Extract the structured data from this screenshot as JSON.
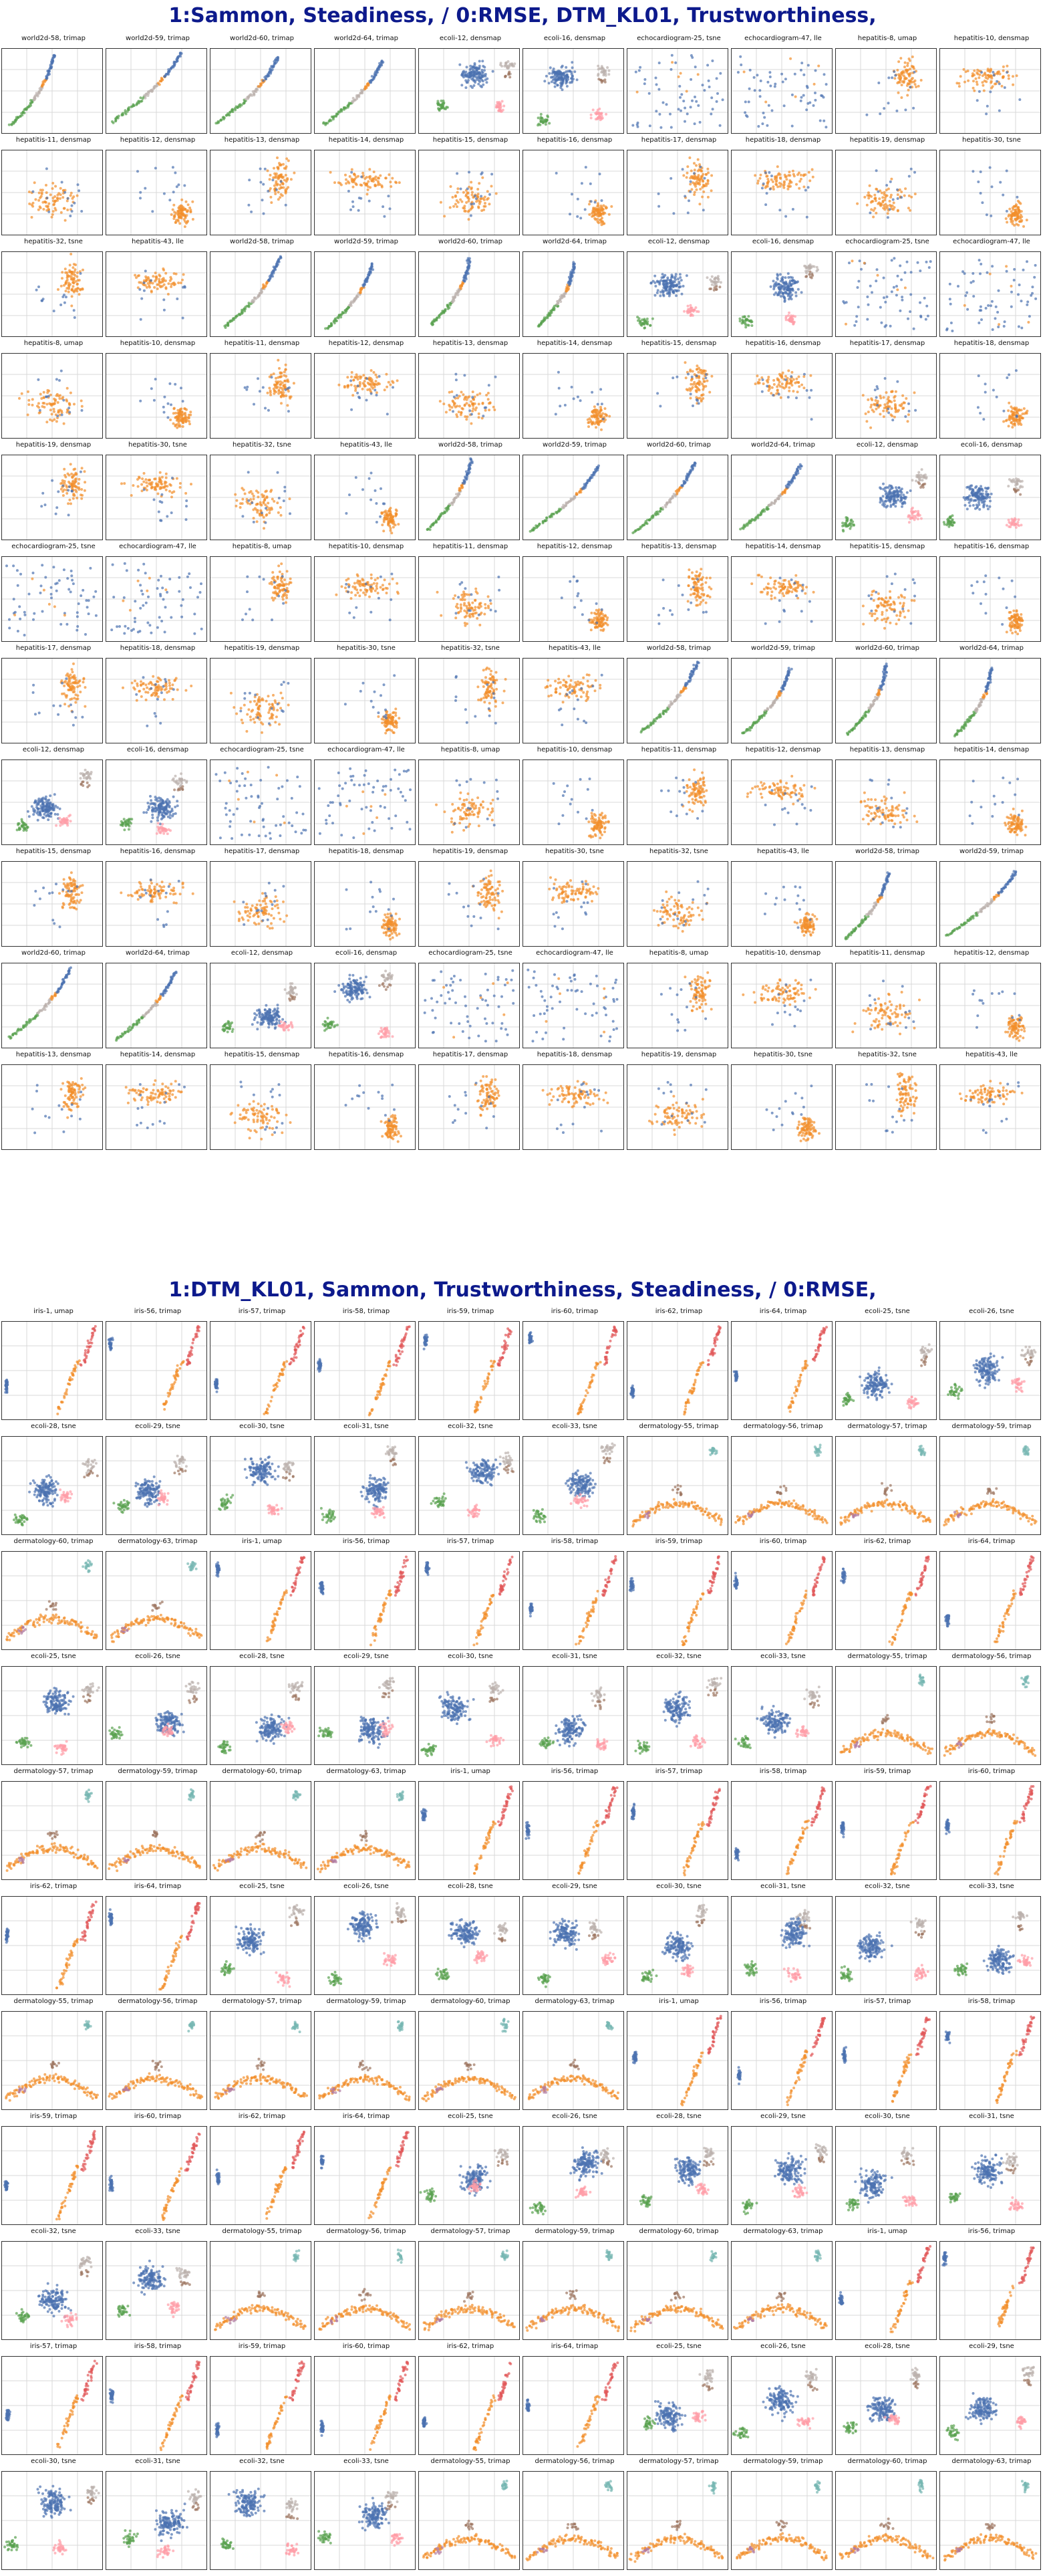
{
  "sections": [
    {
      "title": "1:Sammon, Steadiness,  / 0:RMSE, DTM_KL01, Trustworthiness,",
      "panels": [
        "world2d-58, trimap",
        "world2d-59, trimap",
        "world2d-60, trimap",
        "world2d-64, trimap",
        "ecoli-12, densmap",
        "ecoli-16, densmap",
        "echocardiogram-25, tsne",
        "echocardiogram-47, lle",
        "hepatitis-8, umap",
        "hepatitis-10, densmap",
        "hepatitis-11, densmap",
        "hepatitis-12, densmap",
        "hepatitis-13, densmap",
        "hepatitis-14, densmap",
        "hepatitis-15, densmap",
        "hepatitis-16, densmap",
        "hepatitis-17, densmap",
        "hepatitis-18, densmap",
        "hepatitis-19, densmap",
        "hepatitis-30, tsne",
        "hepatitis-32, tsne",
        "hepatitis-43, lle",
        "world2d-58, trimap",
        "world2d-59, trimap",
        "world2d-60, trimap",
        "world2d-64, trimap",
        "ecoli-12, densmap",
        "ecoli-16, densmap",
        "echocardiogram-25, tsne",
        "echocardiogram-47, lle",
        "hepatitis-8, umap",
        "hepatitis-10, densmap",
        "hepatitis-11, densmap",
        "hepatitis-12, densmap",
        "hepatitis-13, densmap",
        "hepatitis-14, densmap",
        "hepatitis-15, densmap",
        "hepatitis-16, densmap",
        "hepatitis-17, densmap",
        "hepatitis-18, densmap",
        "hepatitis-19, densmap",
        "hepatitis-30, tsne",
        "hepatitis-32, tsne",
        "hepatitis-43, lle",
        "world2d-58, trimap",
        "world2d-59, trimap",
        "world2d-60, trimap",
        "world2d-64, trimap",
        "ecoli-12, densmap",
        "ecoli-16, densmap",
        "echocardiogram-25, tsne",
        "echocardiogram-47, lle",
        "hepatitis-8, umap",
        "hepatitis-10, densmap",
        "hepatitis-11, densmap",
        "hepatitis-12, densmap",
        "hepatitis-13, densmap",
        "hepatitis-14, densmap",
        "hepatitis-15, densmap",
        "hepatitis-16, densmap",
        "hepatitis-17, densmap",
        "hepatitis-18, densmap",
        "hepatitis-19, densmap",
        "hepatitis-30, tsne",
        "hepatitis-32, tsne",
        "hepatitis-43, lle",
        "world2d-58, trimap",
        "world2d-59, trimap",
        "world2d-60, trimap",
        "world2d-64, trimap",
        "ecoli-12, densmap",
        "ecoli-16, densmap",
        "echocardiogram-25, tsne",
        "echocardiogram-47, lle",
        "hepatitis-8, umap",
        "hepatitis-10, densmap",
        "hepatitis-11, densmap",
        "hepatitis-12, densmap",
        "hepatitis-13, densmap",
        "hepatitis-14, densmap",
        "hepatitis-15, densmap",
        "hepatitis-16, densmap",
        "hepatitis-17, densmap",
        "hepatitis-18, densmap",
        "hepatitis-19, densmap",
        "hepatitis-30, tsne",
        "hepatitis-32, tsne",
        "hepatitis-43, lle",
        "world2d-58, trimap",
        "world2d-59, trimap",
        "world2d-60, trimap",
        "world2d-64, trimap",
        "ecoli-12, densmap",
        "ecoli-16, densmap",
        "echocardiogram-25, tsne",
        "echocardiogram-47, lle",
        "hepatitis-8, umap",
        "hepatitis-10, densmap",
        "hepatitis-11, densmap",
        "hepatitis-12, densmap",
        "hepatitis-13, densmap",
        "hepatitis-14, densmap",
        "hepatitis-15, densmap",
        "hepatitis-16, densmap",
        "hepatitis-17, densmap",
        "hepatitis-18, densmap",
        "hepatitis-19, densmap",
        "hepatitis-30, tsne",
        "hepatitis-32, tsne",
        "hepatitis-43, lle"
      ]
    },
    {
      "title": "1:DTM_KL01, Sammon, Trustworthiness, Steadiness,  / 0:RMSE,",
      "panels": [
        "iris-1, umap",
        "iris-56, trimap",
        "iris-57, trimap",
        "iris-58, trimap",
        "iris-59, trimap",
        "iris-60, trimap",
        "iris-62, trimap",
        "iris-64, trimap",
        "ecoli-25, tsne",
        "ecoli-26, tsne",
        "ecoli-28, tsne",
        "ecoli-29, tsne",
        "ecoli-30, tsne",
        "ecoli-31, tsne",
        "ecoli-32, tsne",
        "ecoli-33, tsne",
        "dermatology-55, trimap",
        "dermatology-56, trimap",
        "dermatology-57, trimap",
        "dermatology-59, trimap",
        "dermatology-60, trimap",
        "dermatology-63, trimap",
        "iris-1, umap",
        "iris-56, trimap",
        "iris-57, trimap",
        "iris-58, trimap",
        "iris-59, trimap",
        "iris-60, trimap",
        "iris-62, trimap",
        "iris-64, trimap",
        "ecoli-25, tsne",
        "ecoli-26, tsne",
        "ecoli-28, tsne",
        "ecoli-29, tsne",
        "ecoli-30, tsne",
        "ecoli-31, tsne",
        "ecoli-32, tsne",
        "ecoli-33, tsne",
        "dermatology-55, trimap",
        "dermatology-56, trimap",
        "dermatology-57, trimap",
        "dermatology-59, trimap",
        "dermatology-60, trimap",
        "dermatology-63, trimap",
        "iris-1, umap",
        "iris-56, trimap",
        "iris-57, trimap",
        "iris-58, trimap",
        "iris-59, trimap",
        "iris-60, trimap",
        "iris-62, trimap",
        "iris-64, trimap",
        "ecoli-25, tsne",
        "ecoli-26, tsne",
        "ecoli-28, tsne",
        "ecoli-29, tsne",
        "ecoli-30, tsne",
        "ecoli-31, tsne",
        "ecoli-32, tsne",
        "ecoli-33, tsne",
        "dermatology-55, trimap",
        "dermatology-56, trimap",
        "dermatology-57, trimap",
        "dermatology-59, trimap",
        "dermatology-60, trimap",
        "dermatology-63, trimap",
        "iris-1, umap",
        "iris-56, trimap",
        "iris-57, trimap",
        "iris-58, trimap",
        "iris-59, trimap",
        "iris-60, trimap",
        "iris-62, trimap",
        "iris-64, trimap",
        "ecoli-25, tsne",
        "ecoli-26, tsne",
        "ecoli-28, tsne",
        "ecoli-29, tsne",
        "ecoli-30, tsne",
        "ecoli-31, tsne",
        "ecoli-32, tsne",
        "ecoli-33, tsne",
        "dermatology-55, trimap",
        "dermatology-56, trimap",
        "dermatology-57, trimap",
        "dermatology-59, trimap",
        "dermatology-60, trimap",
        "dermatology-63, trimap",
        "iris-1, umap",
        "iris-56, trimap",
        "iris-57, trimap",
        "iris-58, trimap",
        "iris-59, trimap",
        "iris-60, trimap",
        "iris-62, trimap",
        "iris-64, trimap",
        "ecoli-25, tsne",
        "ecoli-26, tsne",
        "ecoli-28, tsne",
        "ecoli-29, tsne",
        "ecoli-30, tsne",
        "ecoli-31, tsne",
        "ecoli-32, tsne",
        "ecoli-33, tsne",
        "dermatology-55, trimap",
        "dermatology-56, trimap",
        "dermatology-57, trimap",
        "dermatology-59, trimap",
        "dermatology-60, trimap",
        "dermatology-63, trimap"
      ]
    }
  ],
  "chart_data": {
    "type": "scatter",
    "grid": true,
    "colors": {
      "blue": "#4c72b0",
      "orange": "#f28e2b",
      "green": "#59a14f",
      "red": "#e15759",
      "pink": "#ff9da7",
      "gray": "#bab0ac",
      "brown": "#9c755f",
      "teal": "#76b7b2",
      "purple": "#b07aa1",
      "gridline": "#d9d9d9",
      "frame": "#333333",
      "title": "#0d1a8c"
    }
  }
}
